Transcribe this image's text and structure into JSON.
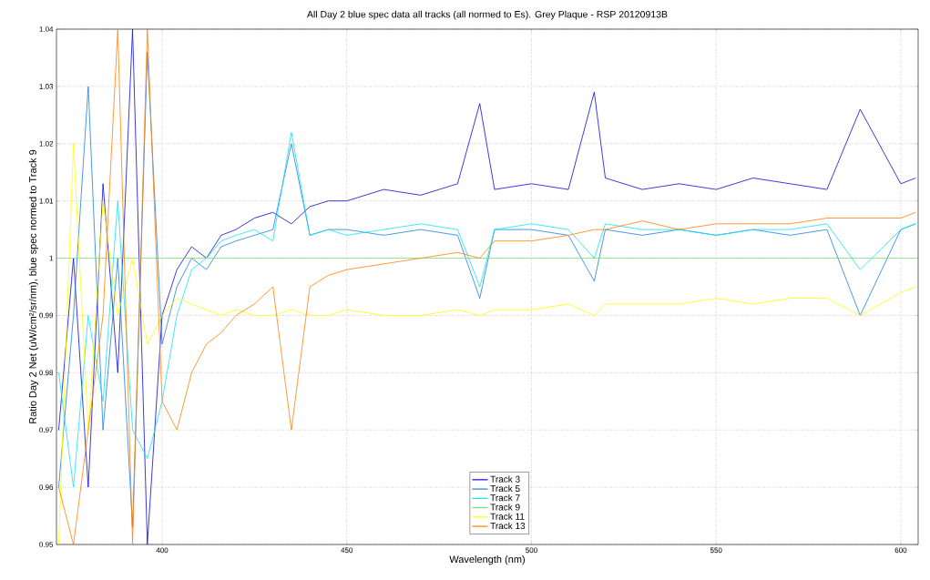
{
  "chart_data": {
    "type": "line",
    "title": "All Day 2 blue spec data all tracks (all normed to Es). Grey Plaque - RSP 20120913B",
    "xlabel": "Wavelength (nm)",
    "ylabel": "Ratio Day 2 Net (uW/cm²/sr/nm), blue  spec normed to Track 9",
    "x": [
      372,
      376,
      380,
      384,
      388,
      392,
      396,
      400,
      404,
      408,
      412,
      416,
      420,
      425,
      430,
      435,
      440,
      445,
      450,
      460,
      470,
      480,
      486,
      490,
      500,
      510,
      517,
      520,
      530,
      540,
      550,
      560,
      570,
      580,
      589,
      600,
      604
    ],
    "series": [
      {
        "name": "Track 3",
        "color": "#0a0ad8",
        "values": [
          0.97,
          1.0,
          0.96,
          1.013,
          0.98,
          1.04,
          0.95,
          0.99,
          0.998,
          1.002,
          1.0,
          1.004,
          1.005,
          1.007,
          1.008,
          1.006,
          1.009,
          1.01,
          1.01,
          1.012,
          1.011,
          1.013,
          1.027,
          1.012,
          1.013,
          1.012,
          1.029,
          1.014,
          1.012,
          1.013,
          1.012,
          1.014,
          1.013,
          1.012,
          1.026,
          1.013,
          1.014
        ]
      },
      {
        "name": "Track 5",
        "color": "#1e7ee0",
        "values": [
          0.96,
          0.99,
          1.03,
          0.97,
          1.0,
          0.953,
          1.036,
          0.985,
          0.995,
          1.0,
          0.998,
          1.002,
          1.003,
          1.004,
          1.005,
          1.02,
          1.004,
          1.005,
          1.005,
          1.004,
          1.005,
          1.004,
          0.993,
          1.005,
          1.005,
          1.004,
          0.996,
          1.005,
          1.004,
          1.005,
          1.004,
          1.005,
          1.004,
          1.005,
          0.99,
          1.005,
          1.006
        ]
      },
      {
        "name": "Track 7",
        "color": "#10e4f0",
        "values": [
          0.98,
          0.96,
          0.99,
          0.975,
          1.01,
          0.97,
          0.965,
          0.975,
          0.99,
          0.998,
          1.0,
          1.003,
          1.004,
          1.005,
          1.003,
          1.022,
          1.004,
          1.005,
          1.004,
          1.005,
          1.006,
          1.005,
          0.995,
          1.005,
          1.006,
          1.005,
          1.0,
          1.006,
          1.005,
          1.005,
          1.004,
          1.005,
          1.005,
          1.006,
          0.998,
          1.005,
          1.006
        ]
      },
      {
        "name": "Track 9",
        "color": "#7ce07c",
        "values": [
          1,
          1,
          1,
          1,
          1,
          1,
          1,
          1,
          1,
          1,
          1,
          1,
          1,
          1,
          1,
          1,
          1,
          1,
          1,
          1,
          1,
          1,
          1,
          1,
          1,
          1,
          1,
          1,
          1,
          1,
          1,
          1,
          1,
          1,
          1,
          1,
          1
        ]
      },
      {
        "name": "Track 11",
        "color": "#ffff00",
        "values": [
          0.95,
          1.02,
          0.97,
          1.01,
          0.99,
          1.0,
          0.985,
          0.99,
          0.993,
          0.992,
          0.991,
          0.99,
          0.991,
          0.99,
          0.99,
          0.991,
          0.99,
          0.99,
          0.991,
          0.99,
          0.99,
          0.991,
          0.99,
          0.991,
          0.991,
          0.992,
          0.99,
          0.992,
          0.992,
          0.992,
          0.993,
          0.992,
          0.993,
          0.993,
          0.99,
          0.994,
          0.995
        ]
      },
      {
        "name": "Track 13",
        "color": "#ff8000",
        "values": [
          0.96,
          0.95,
          0.97,
          0.99,
          1.04,
          0.95,
          1.04,
          0.975,
          0.97,
          0.98,
          0.985,
          0.987,
          0.99,
          0.992,
          0.995,
          0.97,
          0.995,
          0.997,
          0.998,
          0.999,
          1.0,
          1.001,
          1.0,
          1.003,
          1.003,
          1.004,
          1.005,
          1.005,
          1.0065,
          1.005,
          1.006,
          1.006,
          1.006,
          1.007,
          1.007,
          1.007,
          1.008
        ]
      }
    ],
    "xlim": [
      371.4,
      604.7
    ],
    "ylim": [
      0.95,
      1.04
    ],
    "xticks": [
      400,
      450,
      500,
      550,
      600
    ],
    "yticks": [
      0.95,
      0.96,
      0.97,
      0.98,
      0.99,
      1,
      1.01,
      1.02,
      1.03,
      1.04
    ],
    "grid": true,
    "legend": "bottom",
    "marker": "none",
    "line_style": "solid"
  }
}
